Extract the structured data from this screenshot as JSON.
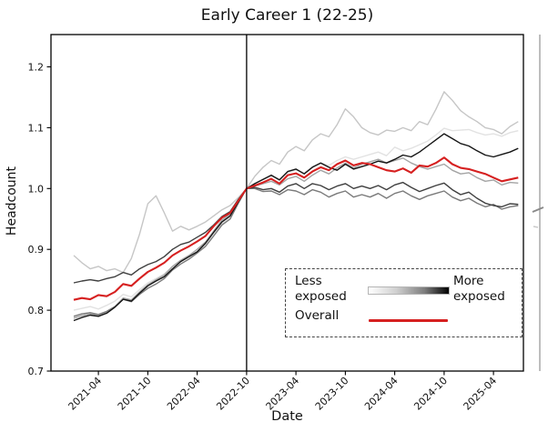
{
  "title": "Early Career 1 (22-25)",
  "xlabel": "Date",
  "ylabel": "Headcount",
  "legend": {
    "less_exposed": "Less exposed",
    "more_exposed": "More exposed",
    "overall": "Overall",
    "overall_color": "#d62020",
    "gradient_description": "white-to-black exposure gradient"
  },
  "chart_data": {
    "type": "line",
    "title": "Early Career 1 (22-25)",
    "xlabel": "Date",
    "ylabel": "Headcount",
    "ylim": [
      0.7,
      1.253
    ],
    "y_ticks": [
      "0.7",
      "0.8",
      "0.9",
      "1.0",
      "1.1",
      "1.2"
    ],
    "x_tick_labels": [
      "2021-04",
      "2021-10",
      "2022-04",
      "2022-10",
      "2023-04",
      "2023-10",
      "2024-04",
      "2024-10",
      "2025-04"
    ],
    "reference_line": {
      "x": "2022-10",
      "color": "#000000"
    },
    "x": [
      "2021-01",
      "2021-02",
      "2021-03",
      "2021-04",
      "2021-05",
      "2021-06",
      "2021-07",
      "2021-08",
      "2021-09",
      "2021-10",
      "2021-11",
      "2021-12",
      "2022-01",
      "2022-02",
      "2022-03",
      "2022-04",
      "2022-05",
      "2022-06",
      "2022-07",
      "2022-08",
      "2022-09",
      "2022-10",
      "2022-11",
      "2022-12",
      "2023-01",
      "2023-02",
      "2023-03",
      "2023-04",
      "2023-05",
      "2023-06",
      "2023-07",
      "2023-08",
      "2023-09",
      "2023-10",
      "2023-11",
      "2023-12",
      "2024-01",
      "2024-02",
      "2024-03",
      "2024-04",
      "2024-05",
      "2024-06",
      "2024-07",
      "2024-08",
      "2024-09",
      "2024-10",
      "2024-11",
      "2024-12",
      "2025-01",
      "2025-02",
      "2025-03",
      "2025-04",
      "2025-05",
      "2025-06",
      "2025-07"
    ],
    "series": [
      {
        "name": "least-exposed-bin-1",
        "color": "#e2e2e2",
        "width": 1.4,
        "values": [
          0.8,
          0.803,
          0.806,
          0.802,
          0.808,
          0.815,
          0.826,
          0.822,
          0.834,
          0.845,
          0.852,
          0.86,
          0.872,
          0.88,
          0.887,
          0.896,
          0.908,
          0.925,
          0.942,
          0.952,
          0.978,
          1.0,
          1.008,
          1.015,
          1.02,
          1.016,
          1.026,
          1.03,
          1.026,
          1.036,
          1.042,
          1.038,
          1.046,
          1.052,
          1.048,
          1.052,
          1.056,
          1.06,
          1.054,
          1.068,
          1.062,
          1.066,
          1.072,
          1.078,
          1.088,
          1.099,
          1.095,
          1.096,
          1.097,
          1.092,
          1.088,
          1.09,
          1.086,
          1.092,
          1.095
        ]
      },
      {
        "name": "exposed-bin-2",
        "color": "#c6c6c6",
        "width": 1.4,
        "values": [
          0.89,
          0.878,
          0.868,
          0.872,
          0.865,
          0.868,
          0.862,
          0.885,
          0.925,
          0.975,
          0.988,
          0.96,
          0.93,
          0.938,
          0.932,
          0.938,
          0.945,
          0.955,
          0.965,
          0.972,
          0.985,
          1.0,
          1.02,
          1.035,
          1.046,
          1.04,
          1.06,
          1.069,
          1.062,
          1.08,
          1.09,
          1.085,
          1.105,
          1.131,
          1.118,
          1.1,
          1.092,
          1.088,
          1.096,
          1.094,
          1.1,
          1.095,
          1.11,
          1.105,
          1.13,
          1.159,
          1.145,
          1.128,
          1.118,
          1.11,
          1.1,
          1.097,
          1.09,
          1.102,
          1.11
        ]
      },
      {
        "name": "exposed-bin-3",
        "color": "#a4a4a4",
        "width": 1.4,
        "values": [
          0.787,
          0.791,
          0.794,
          0.792,
          0.797,
          0.806,
          0.82,
          0.817,
          0.83,
          0.842,
          0.85,
          0.858,
          0.872,
          0.882,
          0.89,
          0.9,
          0.912,
          0.93,
          0.948,
          0.958,
          0.98,
          1.0,
          1.004,
          1.008,
          1.012,
          1.006,
          1.016,
          1.02,
          1.012,
          1.022,
          1.03,
          1.024,
          1.034,
          1.042,
          1.034,
          1.04,
          1.044,
          1.048,
          1.042,
          1.046,
          1.05,
          1.042,
          1.036,
          1.032,
          1.036,
          1.04,
          1.03,
          1.024,
          1.026,
          1.018,
          1.012,
          1.014,
          1.006,
          1.01,
          1.009
        ]
      },
      {
        "name": "exposed-bin-4",
        "color": "#7a7a7a",
        "width": 1.4,
        "values": [
          0.79,
          0.794,
          0.796,
          0.793,
          0.798,
          0.806,
          0.818,
          0.814,
          0.826,
          0.836,
          0.843,
          0.852,
          0.866,
          0.876,
          0.884,
          0.894,
          0.905,
          0.922,
          0.94,
          0.95,
          0.976,
          1.0,
          1.0,
          0.995,
          0.996,
          0.99,
          0.998,
          0.996,
          0.99,
          0.998,
          0.994,
          0.986,
          0.992,
          0.996,
          0.986,
          0.99,
          0.986,
          0.992,
          0.984,
          0.992,
          0.996,
          0.988,
          0.982,
          0.988,
          0.992,
          0.996,
          0.986,
          0.98,
          0.984,
          0.976,
          0.97,
          0.974,
          0.966,
          0.97,
          0.972
        ]
      },
      {
        "name": "exposed-bin-5",
        "color": "#3f3f3f",
        "width": 1.4,
        "values": [
          0.845,
          0.848,
          0.85,
          0.848,
          0.852,
          0.855,
          0.862,
          0.858,
          0.868,
          0.875,
          0.88,
          0.888,
          0.9,
          0.908,
          0.912,
          0.92,
          0.928,
          0.94,
          0.954,
          0.962,
          0.982,
          1.0,
          1.002,
          0.998,
          1.0,
          0.994,
          1.004,
          1.008,
          1.0,
          1.008,
          1.005,
          0.998,
          1.004,
          1.008,
          1.0,
          1.004,
          1.0,
          1.005,
          0.998,
          1.006,
          1.01,
          1.002,
          0.995,
          1.0,
          1.005,
          1.009,
          0.998,
          0.99,
          0.994,
          0.984,
          0.976,
          0.972,
          0.97,
          0.975,
          0.974
        ]
      },
      {
        "name": "most-exposed-bin-6",
        "color": "#141414",
        "width": 1.4,
        "values": [
          0.783,
          0.788,
          0.792,
          0.79,
          0.795,
          0.805,
          0.818,
          0.815,
          0.828,
          0.84,
          0.848,
          0.855,
          0.868,
          0.88,
          0.888,
          0.896,
          0.91,
          0.928,
          0.945,
          0.955,
          0.978,
          1.0,
          1.008,
          1.015,
          1.022,
          1.014,
          1.028,
          1.032,
          1.024,
          1.035,
          1.042,
          1.035,
          1.03,
          1.04,
          1.032,
          1.036,
          1.04,
          1.045,
          1.042,
          1.048,
          1.055,
          1.052,
          1.06,
          1.07,
          1.08,
          1.09,
          1.082,
          1.074,
          1.07,
          1.062,
          1.055,
          1.052,
          1.056,
          1.06,
          1.066
        ]
      },
      {
        "name": "Overall",
        "color": "#d62020",
        "width": 2.1,
        "values": [
          0.817,
          0.82,
          0.818,
          0.825,
          0.823,
          0.83,
          0.843,
          0.84,
          0.852,
          0.863,
          0.87,
          0.878,
          0.89,
          0.898,
          0.905,
          0.913,
          0.922,
          0.938,
          0.952,
          0.96,
          0.98,
          1.0,
          1.005,
          1.01,
          1.016,
          1.008,
          1.022,
          1.025,
          1.018,
          1.028,
          1.035,
          1.03,
          1.04,
          1.046,
          1.038,
          1.042,
          1.04,
          1.035,
          1.03,
          1.028,
          1.033,
          1.026,
          1.038,
          1.036,
          1.042,
          1.051,
          1.04,
          1.034,
          1.032,
          1.028,
          1.024,
          1.018,
          1.012,
          1.015,
          1.018
        ]
      }
    ]
  }
}
